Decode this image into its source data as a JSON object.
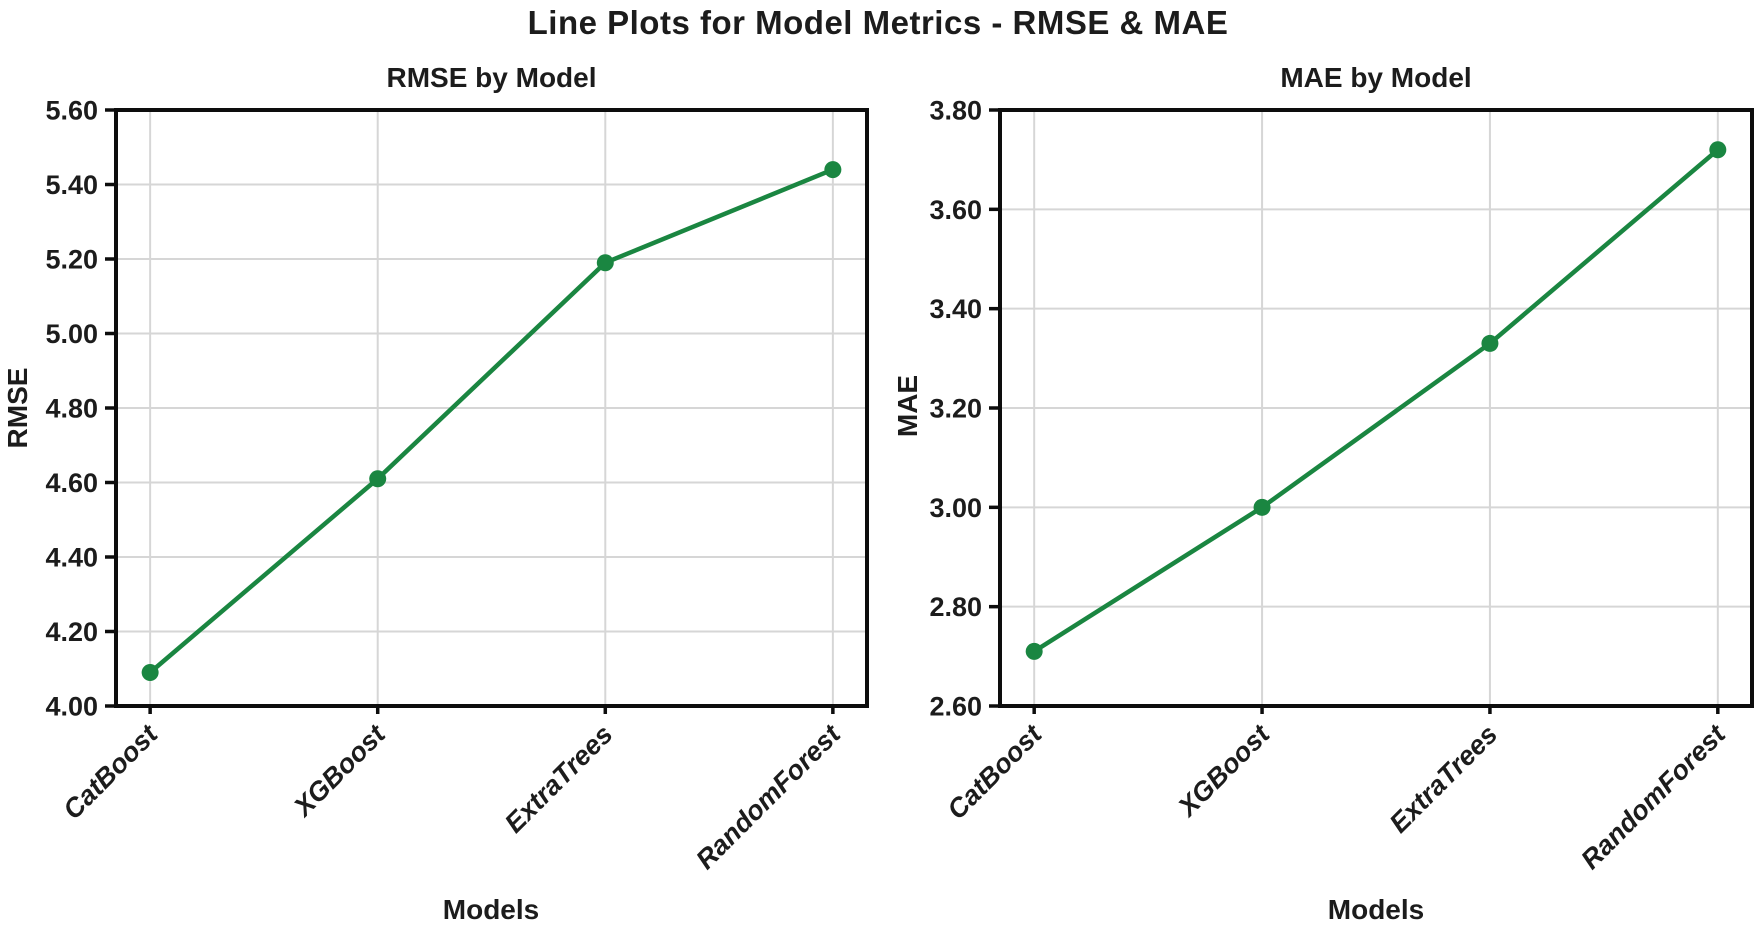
{
  "figure": {
    "title": "Line Plots for Model Metrics - RMSE & MAE"
  },
  "style": {
    "background": "#ffffff",
    "grid_color": "#d6d6d6",
    "spine_color": "#0d0d0d",
    "text_color": "#1c1c1c"
  },
  "chart_data": [
    {
      "type": "line",
      "title": "RMSE by Model",
      "xlabel": "Models",
      "ylabel": "RMSE",
      "categories": [
        "CatBoost",
        "XGBoost",
        "ExtraTrees",
        "RandomForest"
      ],
      "series": [
        {
          "name": "RMSE",
          "values": [
            4.09,
            4.61,
            5.19,
            5.44
          ]
        }
      ],
      "ylim": [
        4.0,
        5.6
      ],
      "yticks": [
        "4.00",
        "4.20",
        "4.40",
        "4.60",
        "4.80",
        "5.00",
        "5.20",
        "5.40",
        "5.60"
      ],
      "grid": true,
      "legend": "none",
      "line_color": "#1a8641",
      "marker": "circle",
      "xtick_rotation_deg": 45
    },
    {
      "type": "line",
      "title": "MAE by Model",
      "xlabel": "Models",
      "ylabel": "MAE",
      "categories": [
        "CatBoost",
        "XGBoost",
        "ExtraTrees",
        "RandomForest"
      ],
      "series": [
        {
          "name": "MAE",
          "values": [
            2.71,
            3.0,
            3.33,
            3.72
          ]
        }
      ],
      "ylim": [
        2.6,
        3.8
      ],
      "yticks": [
        "2.60",
        "2.80",
        "3.00",
        "3.20",
        "3.40",
        "3.60",
        "3.80"
      ],
      "grid": true,
      "legend": "none",
      "line_color": "#1a8641",
      "marker": "circle",
      "xtick_rotation_deg": 45
    }
  ]
}
